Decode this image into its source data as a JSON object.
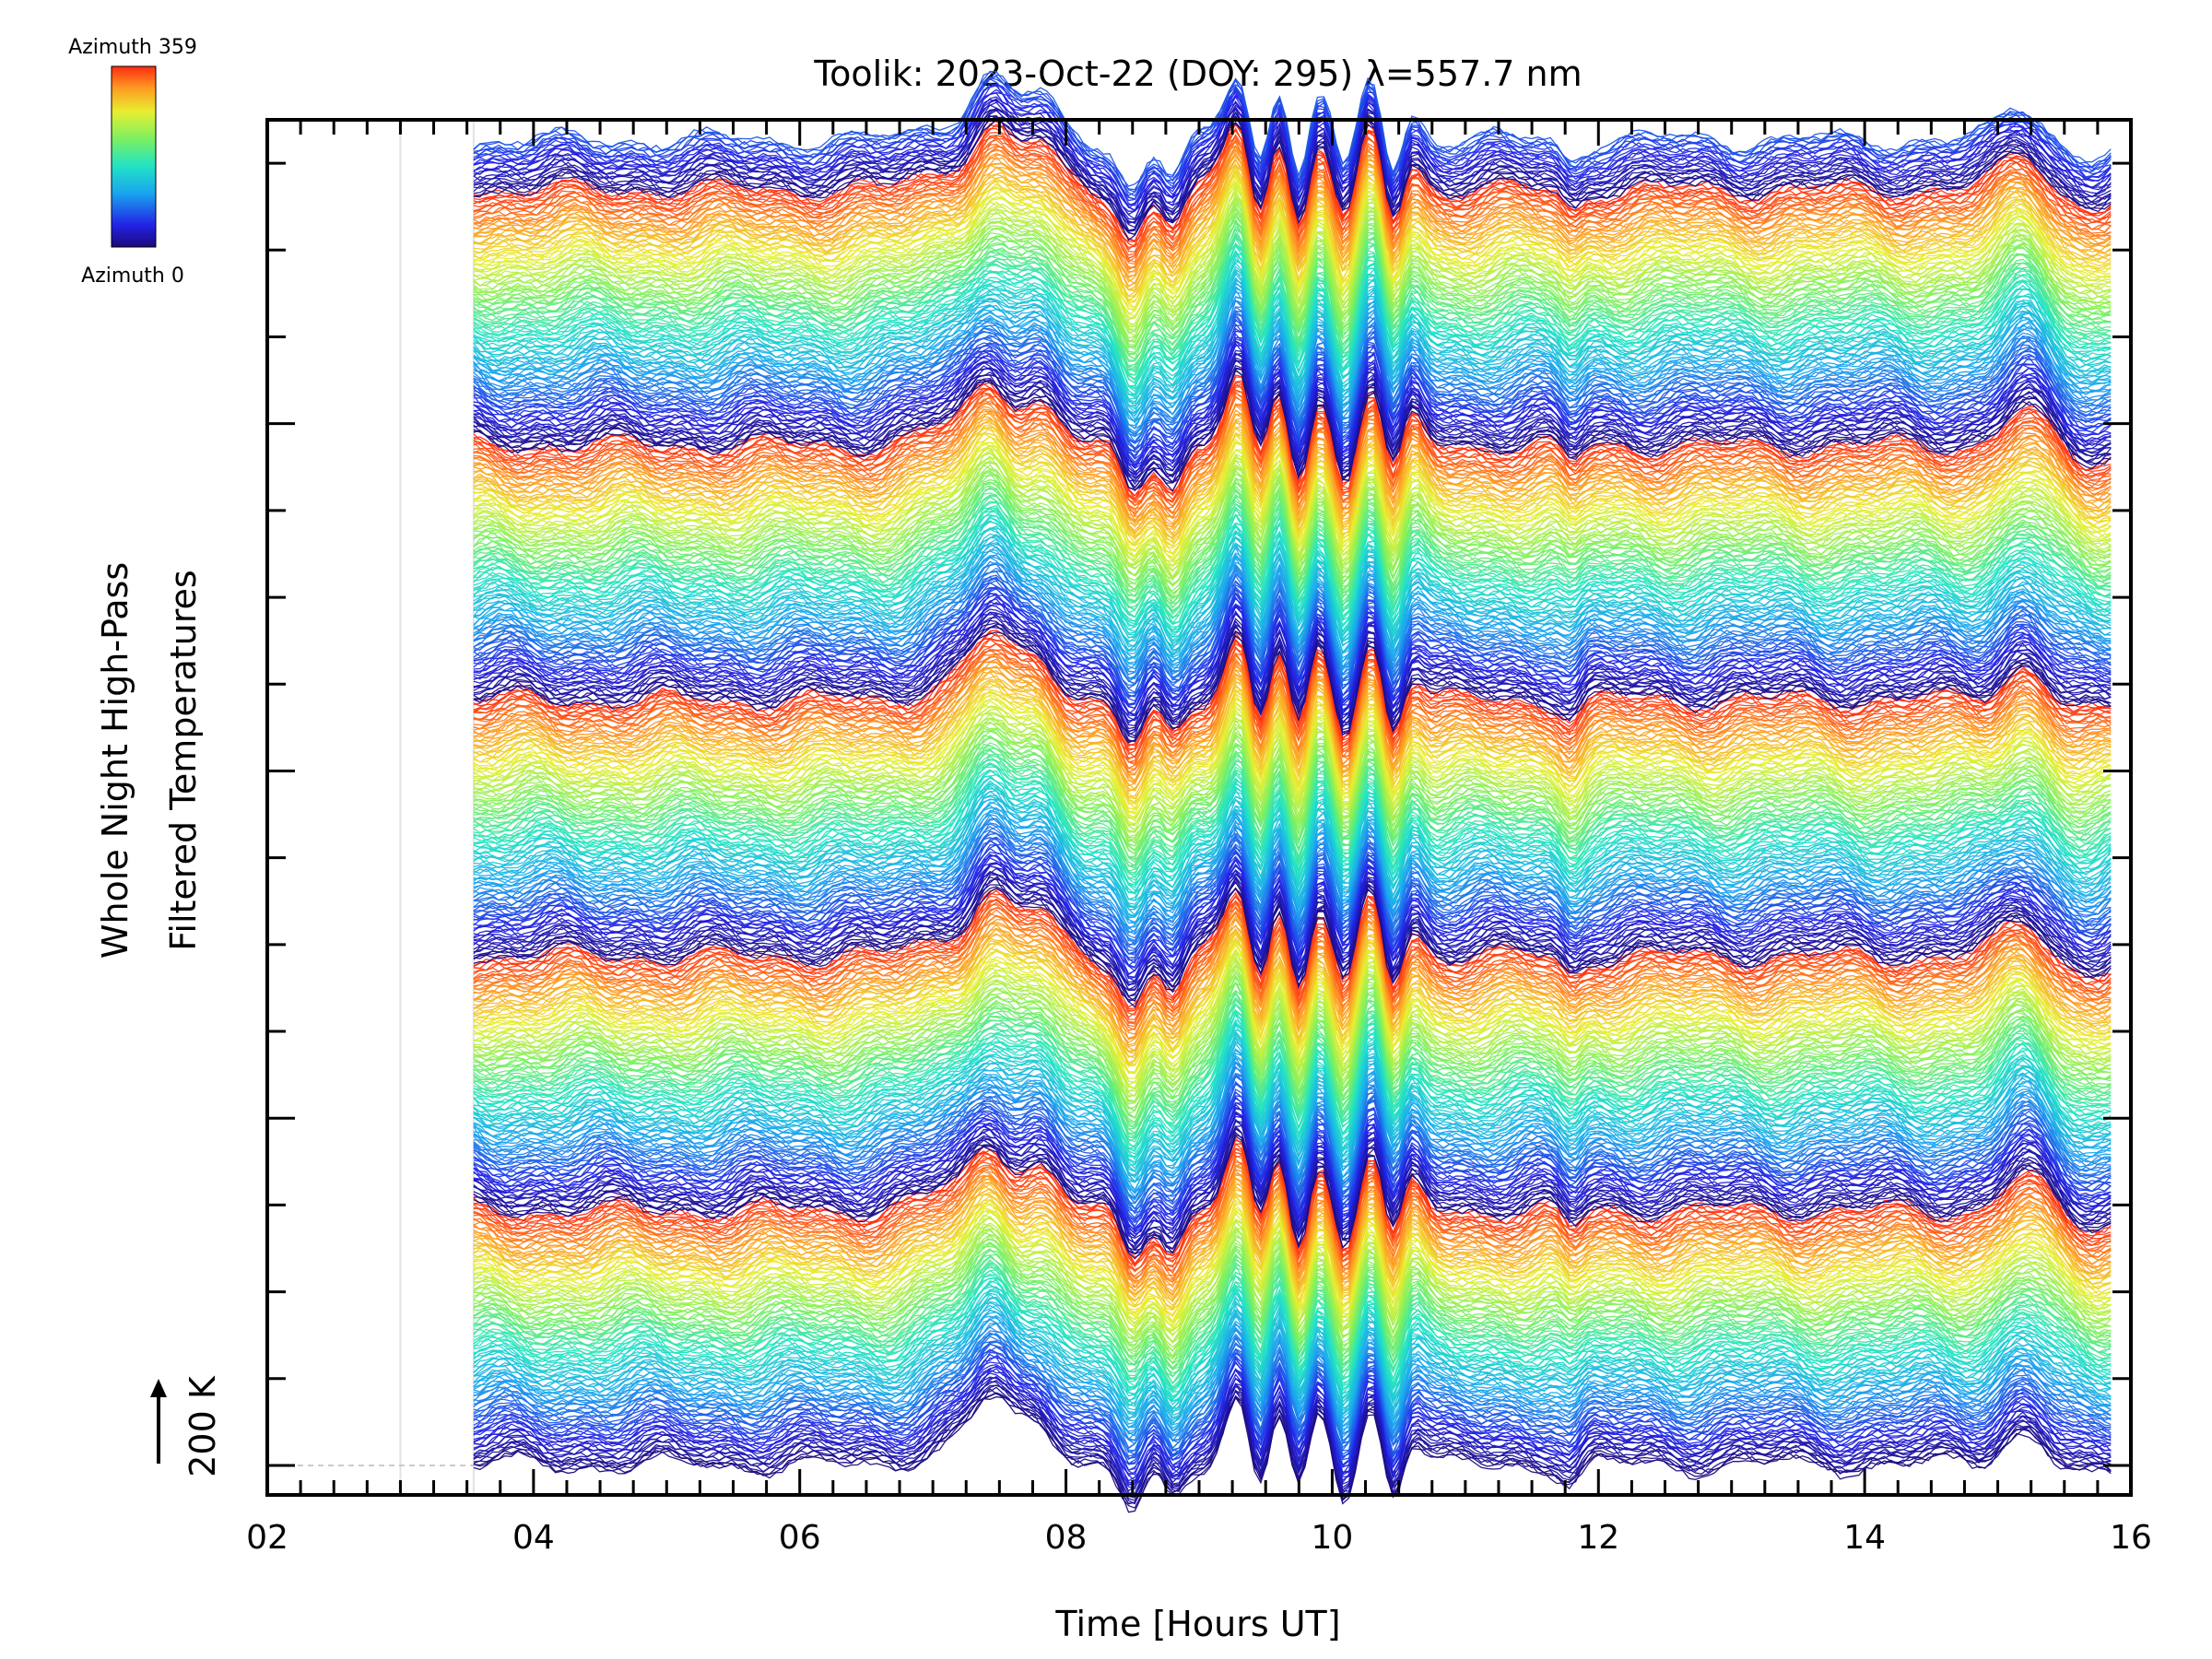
{
  "chart_data": {
    "type": "line",
    "title": "Toolik: 2023-Oct-22 (DOY: 295) λ=557.7 nm",
    "xlabel": "Time [Hours UT]",
    "ylabel_line1": "Whole Night High-Pass",
    "ylabel_line2": "Filtered Temperatures",
    "xlim": [
      2,
      16
    ],
    "x_ticks": [
      "02",
      "04",
      "06",
      "08",
      "10",
      "12",
      "14",
      "16"
    ],
    "x_tick_values": [
      2,
      4,
      6,
      8,
      10,
      12,
      14,
      16
    ],
    "x_start": 3.55,
    "x_end": 15.85,
    "scale_label": "200 K",
    "scale_value_K": 200,
    "colorbar": {
      "top_label": "Azimuth 359",
      "bottom_label": "Azimuth 0",
      "min": 0,
      "max": 359,
      "colormap": "rainbow"
    },
    "n_traces": 720,
    "n_y_ticks": 16,
    "features": {
      "wave_packet_hours": [
        8.5,
        8.8,
        9.3,
        9.6,
        9.9,
        10.3,
        10.6
      ],
      "enhancement_hours": [
        7.45,
        7.8,
        15.2
      ]
    }
  }
}
